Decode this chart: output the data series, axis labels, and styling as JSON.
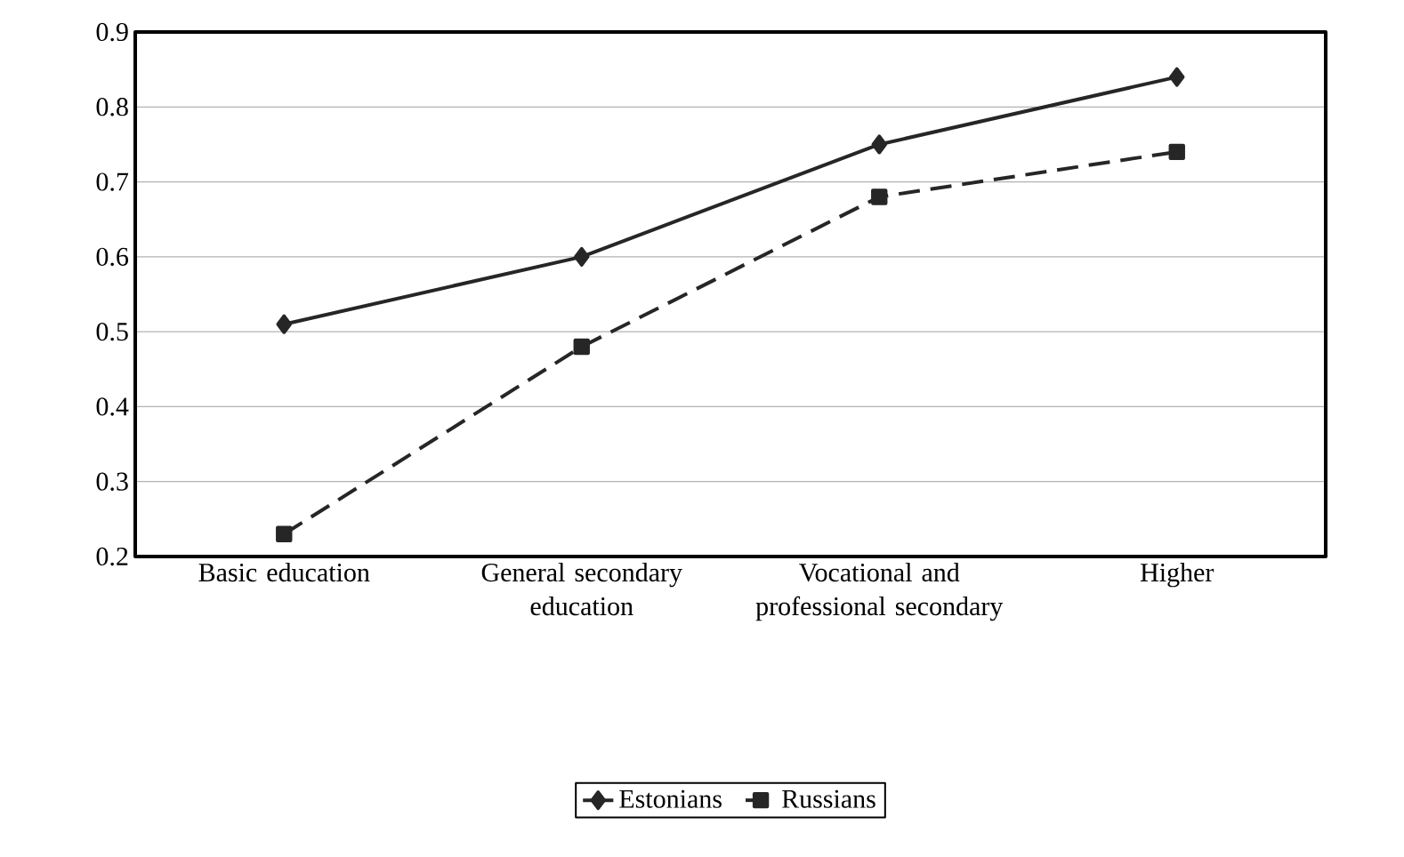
{
  "chart_data": {
    "type": "line",
    "categories": [
      "Basic education",
      "General secondary education",
      "Vocational and professional secondary",
      "Higher"
    ],
    "series": [
      {
        "name": "Estonians",
        "color": "#262626",
        "values": [
          0.51,
          0.6,
          0.75,
          0.84
        ],
        "marker": "diamond",
        "line_style": "solid"
      },
      {
        "name": "Russians",
        "color": "#262626",
        "values": [
          0.23,
          0.48,
          0.68,
          0.74
        ],
        "marker": "square",
        "line_style": "dashed"
      }
    ],
    "ylim": [
      0.2,
      0.9
    ],
    "yticks": [
      0.2,
      0.3,
      0.4,
      0.5,
      0.6,
      0.7,
      0.8,
      0.9
    ],
    "grid": "y",
    "legend": "bottom"
  }
}
